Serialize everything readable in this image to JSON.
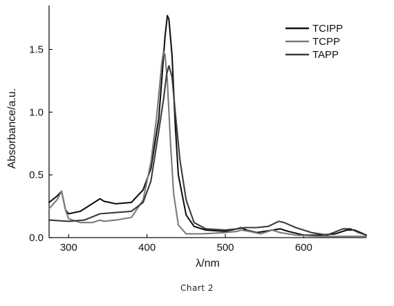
{
  "chart_data": {
    "type": "line",
    "title": "",
    "xlabel": "λ/nm",
    "ylabel": "Absorbance/a.u.",
    "xlim": [
      275,
      680
    ],
    "ylim": [
      0,
      1.85
    ],
    "x_ticks": [
      300,
      400,
      500,
      600
    ],
    "x_tick_labels": [
      "300",
      "400",
      "500",
      "600"
    ],
    "y_ticks": [
      0,
      0.5,
      1.0,
      1.5
    ],
    "y_tick_labels": [
      "0.0",
      "0.5",
      "1.0",
      "1.5"
    ],
    "grid": false,
    "legend_position": "top-right",
    "series": [
      {
        "name": "TCIPP",
        "color": "#111111",
        "points": [
          [
            275,
            0.28
          ],
          [
            285,
            0.33
          ],
          [
            291,
            0.37
          ],
          [
            296,
            0.22
          ],
          [
            300,
            0.19
          ],
          [
            315,
            0.21
          ],
          [
            330,
            0.27
          ],
          [
            340,
            0.31
          ],
          [
            345,
            0.29
          ],
          [
            360,
            0.27
          ],
          [
            380,
            0.28
          ],
          [
            395,
            0.38
          ],
          [
            405,
            0.55
          ],
          [
            415,
            0.95
          ],
          [
            420,
            1.35
          ],
          [
            423,
            1.6
          ],
          [
            426,
            1.77
          ],
          [
            428,
            1.74
          ],
          [
            432,
            1.45
          ],
          [
            436,
            0.9
          ],
          [
            440,
            0.5
          ],
          [
            450,
            0.18
          ],
          [
            460,
            0.09
          ],
          [
            475,
            0.06
          ],
          [
            500,
            0.05
          ],
          [
            515,
            0.07
          ],
          [
            520,
            0.08
          ],
          [
            527,
            0.06
          ],
          [
            540,
            0.04
          ],
          [
            560,
            0.06
          ],
          [
            570,
            0.07
          ],
          [
            580,
            0.05
          ],
          [
            600,
            0.02
          ],
          [
            620,
            0.02
          ],
          [
            640,
            0.03
          ],
          [
            655,
            0.06
          ],
          [
            665,
            0.06
          ],
          [
            680,
            0.02
          ]
        ]
      },
      {
        "name": "TCPP",
        "color": "#7a7a7a",
        "points": [
          [
            275,
            0.23
          ],
          [
            285,
            0.3
          ],
          [
            291,
            0.37
          ],
          [
            296,
            0.22
          ],
          [
            300,
            0.15
          ],
          [
            315,
            0.12
          ],
          [
            330,
            0.12
          ],
          [
            340,
            0.14
          ],
          [
            345,
            0.13
          ],
          [
            360,
            0.14
          ],
          [
            380,
            0.16
          ],
          [
            395,
            0.3
          ],
          [
            405,
            0.6
          ],
          [
            412,
            0.95
          ],
          [
            416,
            1.2
          ],
          [
            419,
            1.4
          ],
          [
            421,
            1.48
          ],
          [
            423,
            1.46
          ],
          [
            426,
            1.25
          ],
          [
            430,
            0.75
          ],
          [
            434,
            0.35
          ],
          [
            440,
            0.1
          ],
          [
            450,
            0.03
          ],
          [
            470,
            0.03
          ],
          [
            500,
            0.04
          ],
          [
            515,
            0.05
          ],
          [
            520,
            0.06
          ],
          [
            530,
            0.05
          ],
          [
            545,
            0.03
          ],
          [
            555,
            0.05
          ],
          [
            560,
            0.06
          ],
          [
            570,
            0.04
          ],
          [
            590,
            0.02
          ],
          [
            620,
            0.01
          ],
          [
            680,
            0.01
          ]
        ]
      },
      {
        "name": "TAPP",
        "color": "#3a3a3a",
        "points": [
          [
            275,
            0.14
          ],
          [
            300,
            0.13
          ],
          [
            320,
            0.14
          ],
          [
            340,
            0.19
          ],
          [
            360,
            0.2
          ],
          [
            380,
            0.21
          ],
          [
            395,
            0.28
          ],
          [
            405,
            0.45
          ],
          [
            415,
            0.85
          ],
          [
            421,
            1.1
          ],
          [
            425,
            1.3
          ],
          [
            428,
            1.37
          ],
          [
            432,
            1.28
          ],
          [
            436,
            1.0
          ],
          [
            442,
            0.62
          ],
          [
            450,
            0.3
          ],
          [
            460,
            0.12
          ],
          [
            475,
            0.07
          ],
          [
            500,
            0.06
          ],
          [
            515,
            0.07
          ],
          [
            525,
            0.08
          ],
          [
            540,
            0.08
          ],
          [
            555,
            0.09
          ],
          [
            568,
            0.13
          ],
          [
            575,
            0.12
          ],
          [
            590,
            0.08
          ],
          [
            610,
            0.04
          ],
          [
            630,
            0.02
          ],
          [
            650,
            0.07
          ],
          [
            660,
            0.07
          ],
          [
            670,
            0.04
          ],
          [
            680,
            0.02
          ]
        ]
      }
    ]
  },
  "caption": "Chart 2"
}
